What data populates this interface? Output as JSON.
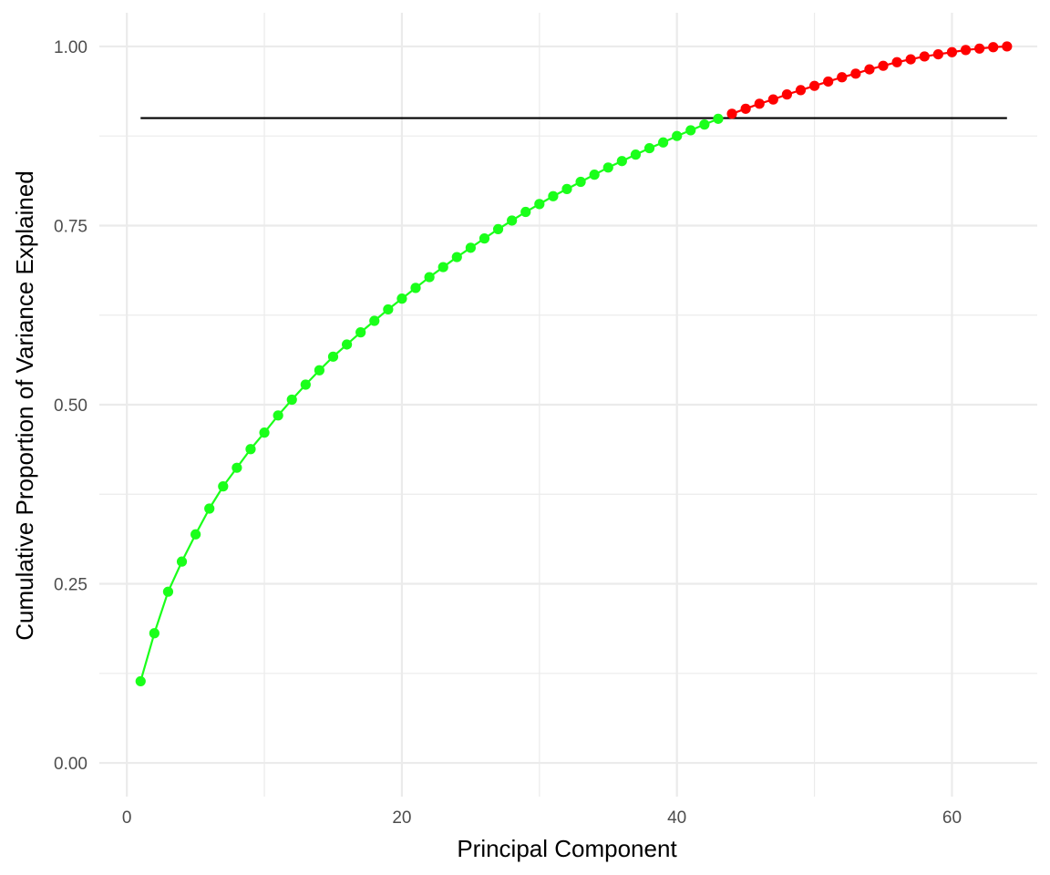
{
  "chart_data": {
    "type": "line",
    "title": "",
    "xlabel": "Principal Component",
    "ylabel": "Cumulative Proportion of Variance Explained",
    "xlim": [
      -2,
      66.2
    ],
    "ylim": [
      -0.047,
      1.047
    ],
    "x_ticks": [
      {
        "value": 0,
        "label": "0"
      },
      {
        "value": 20,
        "label": "20"
      },
      {
        "value": 40,
        "label": "40"
      },
      {
        "value": 60,
        "label": "60"
      }
    ],
    "x_minor_ticks": [
      10,
      30,
      50
    ],
    "y_ticks": [
      {
        "value": 0,
        "label": "0.00"
      },
      {
        "value": 0.25,
        "label": "0.25"
      },
      {
        "value": 0.5,
        "label": "0.50"
      },
      {
        "value": 0.75,
        "label": "0.75"
      },
      {
        "value": 1,
        "label": "1.00"
      }
    ],
    "y_minor_ticks": [
      0.125,
      0.375,
      0.625,
      0.875
    ],
    "grid": true,
    "legend": "none",
    "x": [
      1,
      2,
      3,
      4,
      5,
      6,
      7,
      8,
      9,
      10,
      11,
      12,
      13,
      14,
      15,
      16,
      17,
      18,
      19,
      20,
      21,
      22,
      23,
      24,
      25,
      26,
      27,
      28,
      29,
      30,
      31,
      32,
      33,
      34,
      35,
      36,
      37,
      38,
      39,
      40,
      41,
      42,
      43,
      44,
      45,
      46,
      47,
      48,
      49,
      50,
      51,
      52,
      53,
      54,
      55,
      56,
      57,
      58,
      59,
      60,
      61,
      62,
      63,
      64
    ],
    "y": [
      0.114,
      0.181,
      0.239,
      0.281,
      0.319,
      0.355,
      0.386,
      0.412,
      0.438,
      0.461,
      0.485,
      0.507,
      0.528,
      0.548,
      0.567,
      0.584,
      0.601,
      0.617,
      0.633,
      0.648,
      0.663,
      0.678,
      0.692,
      0.706,
      0.719,
      0.732,
      0.745,
      0.757,
      0.769,
      0.78,
      0.791,
      0.801,
      0.811,
      0.821,
      0.831,
      0.84,
      0.849,
      0.858,
      0.866,
      0.875,
      0.883,
      0.891,
      0.899,
      0.906,
      0.913,
      0.92,
      0.926,
      0.933,
      0.939,
      0.945,
      0.951,
      0.957,
      0.962,
      0.968,
      0.973,
      0.978,
      0.982,
      0.986,
      0.989,
      0.992,
      0.995,
      0.997,
      0.999,
      1.0
    ],
    "threshold": 0.9,
    "threshold_x_range": [
      1,
      64
    ],
    "colors": {
      "below_threshold": "#1aff1a",
      "above_threshold": "#ff0000",
      "threshold_line": "#000000",
      "grid": "#ebebeb"
    }
  }
}
